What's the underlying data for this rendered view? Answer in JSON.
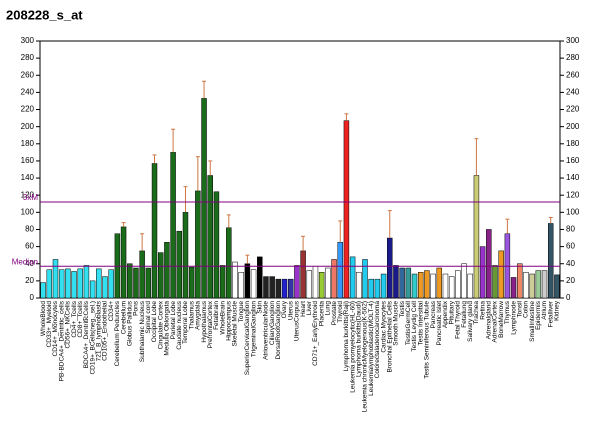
{
  "chart_data": {
    "type": "bar",
    "title": "208228_s_at",
    "categories": [
      "WholeBlood",
      "CD33+_Myeloid",
      "CD14+_Monocytes",
      "PB-BDCA4+_Dentritic_cells",
      "CD56+_NKCells",
      "CD4+_Tcells",
      "CD8+_Tcells",
      "BDCA4+_DentriticCells",
      "CD19+_BCells(neg._sel.)",
      "721_B_lymphoblasts",
      "CD105+_Endothelial",
      "CD34+",
      "Cerebellum Peduncles",
      "Cerebellum",
      "Globus Pallidus",
      "Pons",
      "Subthalamic Nucleus",
      "Spinal cord",
      "Occipital Lobe",
      "Cingulate Cortex",
      "Medulla Oblongata",
      "Parietal Lobe",
      "Caudate nucleus",
      "Temporal Lobe",
      "Thalamus",
      "Amygdala",
      "Hypothalamus",
      "PrefrontalCortex",
      "Fetalbrain",
      "WholeBrain",
      "Hippocampus",
      "Skeletal Muscle",
      "Tongue",
      "SuperiorCervicalGanglion",
      "TrigeminalGanglion",
      "Skin",
      "AtrioventricularNode",
      "CiliaryGanglion",
      "DorsalRootGanglion",
      "Ovary",
      "Uterus",
      "UterusCorpus",
      "Heart",
      "Liver",
      "CD71+_EarlyErythroid",
      "Placenta",
      "Lung",
      "Prostate",
      "Thyroid",
      "Lymphoma burkitts(Raji)",
      "Leukemia promyelocytic(HL-60)",
      "Lymphoma burkitts(Daudi)",
      "Leukemia chronicMyelogenous(K-562)",
      "Leukemialymphoblastic(MOLT-4)",
      "Colorectaladenocarcinoma",
      "Cardiac Myocytes",
      "Bronchial Epithelial Cells",
      "Smooth Muscle",
      "Testis",
      "TestisGermCell",
      "Testis Leydig Cell",
      "Testis Intersitial",
      "Testis Seminiferous Tubule",
      "Pancreas",
      "Pancreatic Islet",
      "Appendix",
      "Pituitary",
      "Fetal Thyroid",
      "Fetallung",
      "Salivary gland",
      "Trachea",
      "Retina",
      "Adrenalgland",
      "AdrenalCortex",
      "BoneMarrow",
      "Thymus",
      "Lymphnode",
      "Tonsil",
      "Colon",
      "SmallIntestine",
      "Epidermis",
      "Atrium",
      "Fetalliver",
      "Kidney"
    ],
    "values": [
      18,
      33,
      45,
      33,
      34,
      31,
      34,
      38,
      20,
      34,
      25,
      33,
      75,
      83,
      40,
      35,
      55,
      35,
      157,
      53,
      65,
      170,
      78,
      100,
      36,
      125,
      233,
      143,
      124,
      38,
      82,
      42,
      30,
      40,
      33,
      48,
      25,
      25,
      22,
      22,
      22,
      38,
      55,
      32,
      37,
      30,
      35,
      45,
      65,
      207,
      48,
      30,
      45,
      22,
      22,
      28,
      70,
      38,
      35,
      35,
      28,
      30,
      32,
      28,
      35,
      28,
      25,
      32,
      40,
      28,
      143,
      60,
      80,
      38,
      55,
      75,
      24,
      40,
      30,
      28,
      32,
      32,
      87,
      27
    ],
    "errors": [
      null,
      null,
      null,
      null,
      null,
      null,
      null,
      null,
      null,
      null,
      null,
      null,
      null,
      5,
      null,
      null,
      20,
      null,
      10,
      null,
      null,
      27,
      null,
      30,
      null,
      40,
      20,
      17,
      null,
      null,
      15,
      null,
      null,
      10,
      null,
      null,
      null,
      null,
      null,
      null,
      null,
      null,
      17,
      null,
      null,
      null,
      null,
      null,
      25,
      8,
      null,
      null,
      null,
      null,
      null,
      null,
      32,
      null,
      null,
      null,
      null,
      null,
      null,
      null,
      null,
      null,
      null,
      null,
      null,
      null,
      43,
      null,
      null,
      null,
      null,
      17,
      null,
      null,
      null,
      null,
      null,
      null,
      7,
      null
    ],
    "colors": [
      "#33e0f0",
      "#33e0f0",
      "#33e0f0",
      "#33e0f0",
      "#33e0f0",
      "#33e0f0",
      "#33e0f0",
      "#33e0f0",
      "#33e0f0",
      "#33e0f0",
      "#33e0f0",
      "#33e0f0",
      "#1a6b1a",
      "#1a6b1a",
      "#1a6b1a",
      "#1a6b1a",
      "#1a6b1a",
      "#1a6b1a",
      "#1a6b1a",
      "#1a6b1a",
      "#1a6b1a",
      "#1a6b1a",
      "#1a6b1a",
      "#1a6b1a",
      "#1a6b1a",
      "#1a6b1a",
      "#1a6b1a",
      "#1a6b1a",
      "#1a6b1a",
      "#1a6b1a",
      "#1a6b1a",
      "#ffffff",
      "#ffffff",
      "#000000",
      "#ffffff",
      "#000000",
      "#222222",
      "#222222",
      "#222222",
      "#2222cc",
      "#3333aa",
      "#9933cc",
      "#993333",
      "#ffffff",
      "#ffffff",
      "#99cc33",
      "#ffffff",
      "#ee7766",
      "#3399ff",
      "#ee2222",
      "#22ccee",
      "#ffffff",
      "#22ccee",
      "#22ccee",
      "#22ccee",
      "#22ccee",
      "#1a1a8a",
      "#1a1a8a",
      "#336699",
      "#339999",
      "#33cccc",
      "#ee9922",
      "#ee9922",
      "#ffffff",
      "#ee9922",
      "#ffffff",
      "#ffffff",
      "#ffffff",
      "#ffffff",
      "#ffffff",
      "#cccc77",
      "#9933cc",
      "#882288",
      "#669933",
      "#ee9922",
      "#9955dd",
      "#882288",
      "#ee8866",
      "#ffffff",
      "#cccc99",
      "#99cc99",
      "#cccccc",
      "#335566",
      "#335566"
    ],
    "error_color": "#cc7744",
    "ylim": [
      0,
      300
    ],
    "yticks": [
      0,
      20,
      40,
      60,
      80,
      100,
      120,
      140,
      160,
      180,
      200,
      220,
      240,
      260,
      280,
      300
    ],
    "reference_lines": [
      {
        "label": "3xM",
        "value": 112
      },
      {
        "label": "Median",
        "value": 37
      }
    ],
    "reference_color": "#800080"
  }
}
